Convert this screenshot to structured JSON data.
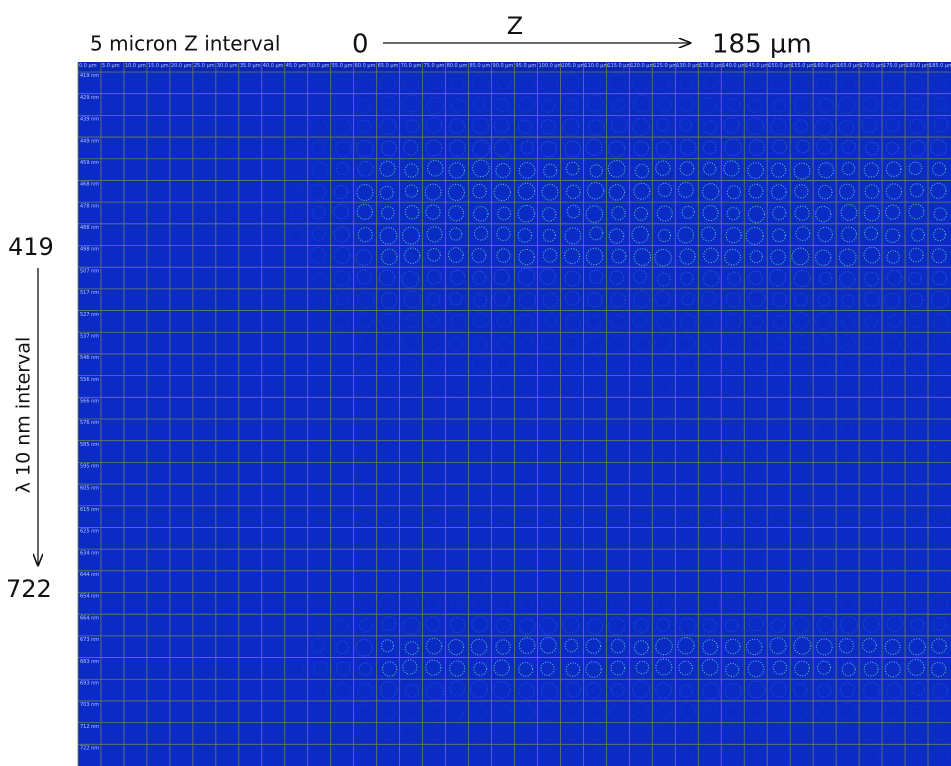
{
  "annotations": {
    "z_interval": "5 micron Z interval",
    "z_start": "0",
    "z_axis": "Z",
    "z_end": "185 µm",
    "lambda_start": "419",
    "lambda_interval": "λ 10 nm interval",
    "lambda_end": "722"
  },
  "grid": {
    "columns": [
      "0.0 µm",
      "5.0 µm",
      "10.0 µm",
      "15.0 µm",
      "20.0 µm",
      "25.0 µm",
      "30.0 µm",
      "35.0 µm",
      "40.0 µm",
      "45.0 µm",
      "50.0 µm",
      "55.0 µm",
      "60.0 µm",
      "65.0 µm",
      "70.0 µm",
      "75.0 µm",
      "80.0 µm",
      "85.0 µm",
      "90.0 µm",
      "95.0 µm",
      "100.0 µm",
      "105.0 µm",
      "110.0 µm",
      "115.0 µm",
      "120.0 µm",
      "125.0 µm",
      "130.0 µm",
      "135.0 µm",
      "140.0 µm",
      "145.0 µm",
      "150.0 µm",
      "155.0 µm",
      "160.0 µm",
      "165.0 µm",
      "170.0 µm",
      "175.0 µm",
      "180.0 µm",
      "185.0 µm"
    ],
    "rows": [
      "419 nm",
      "429 nm",
      "439 nm",
      "449 nm",
      "459 nm",
      "468 nm",
      "478 nm",
      "488 nm",
      "498 nm",
      "507 nm",
      "517 nm",
      "527 nm",
      "537 nm",
      "546 nm",
      "556 nm",
      "566 nm",
      "576 nm",
      "585 nm",
      "595 nm",
      "605 nm",
      "615 nm",
      "625 nm",
      "634 nm",
      "644 nm",
      "654 nm",
      "664 nm",
      "673 nm",
      "683 nm",
      "693 nm",
      "703 nm",
      "712 nm",
      "722 nm"
    ]
  }
}
